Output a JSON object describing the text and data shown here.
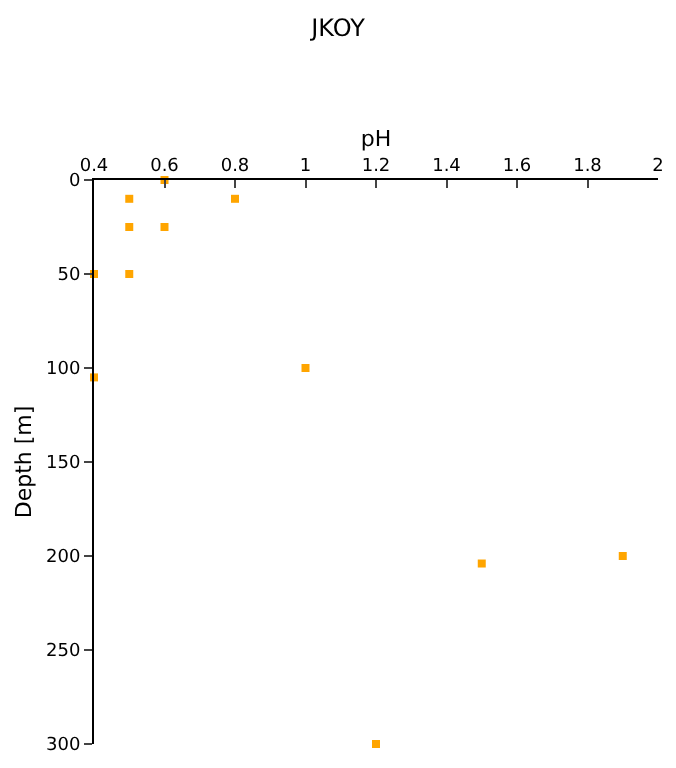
{
  "chart_data": {
    "type": "scatter",
    "title": "JKOY",
    "xlabel": "pH",
    "ylabel": "Depth [m]",
    "x": [
      0.6,
      0.5,
      0.8,
      0.5,
      0.6,
      0.4,
      0.5,
      0.4,
      1.0,
      1.5,
      1.9,
      1.2
    ],
    "values": [
      0,
      10,
      10,
      25,
      25,
      50,
      50,
      105,
      100,
      204,
      200,
      300
    ],
    "color": "#ffa500",
    "marker": "square",
    "xlim": [
      0.4,
      2
    ],
    "xticks": [
      0.4,
      0.6,
      0.8,
      1,
      1.2,
      1.4,
      1.6,
      1.8,
      2
    ],
    "ylim": [
      300,
      0
    ],
    "yticks": [
      0,
      50,
      100,
      150,
      200,
      250,
      300
    ]
  }
}
